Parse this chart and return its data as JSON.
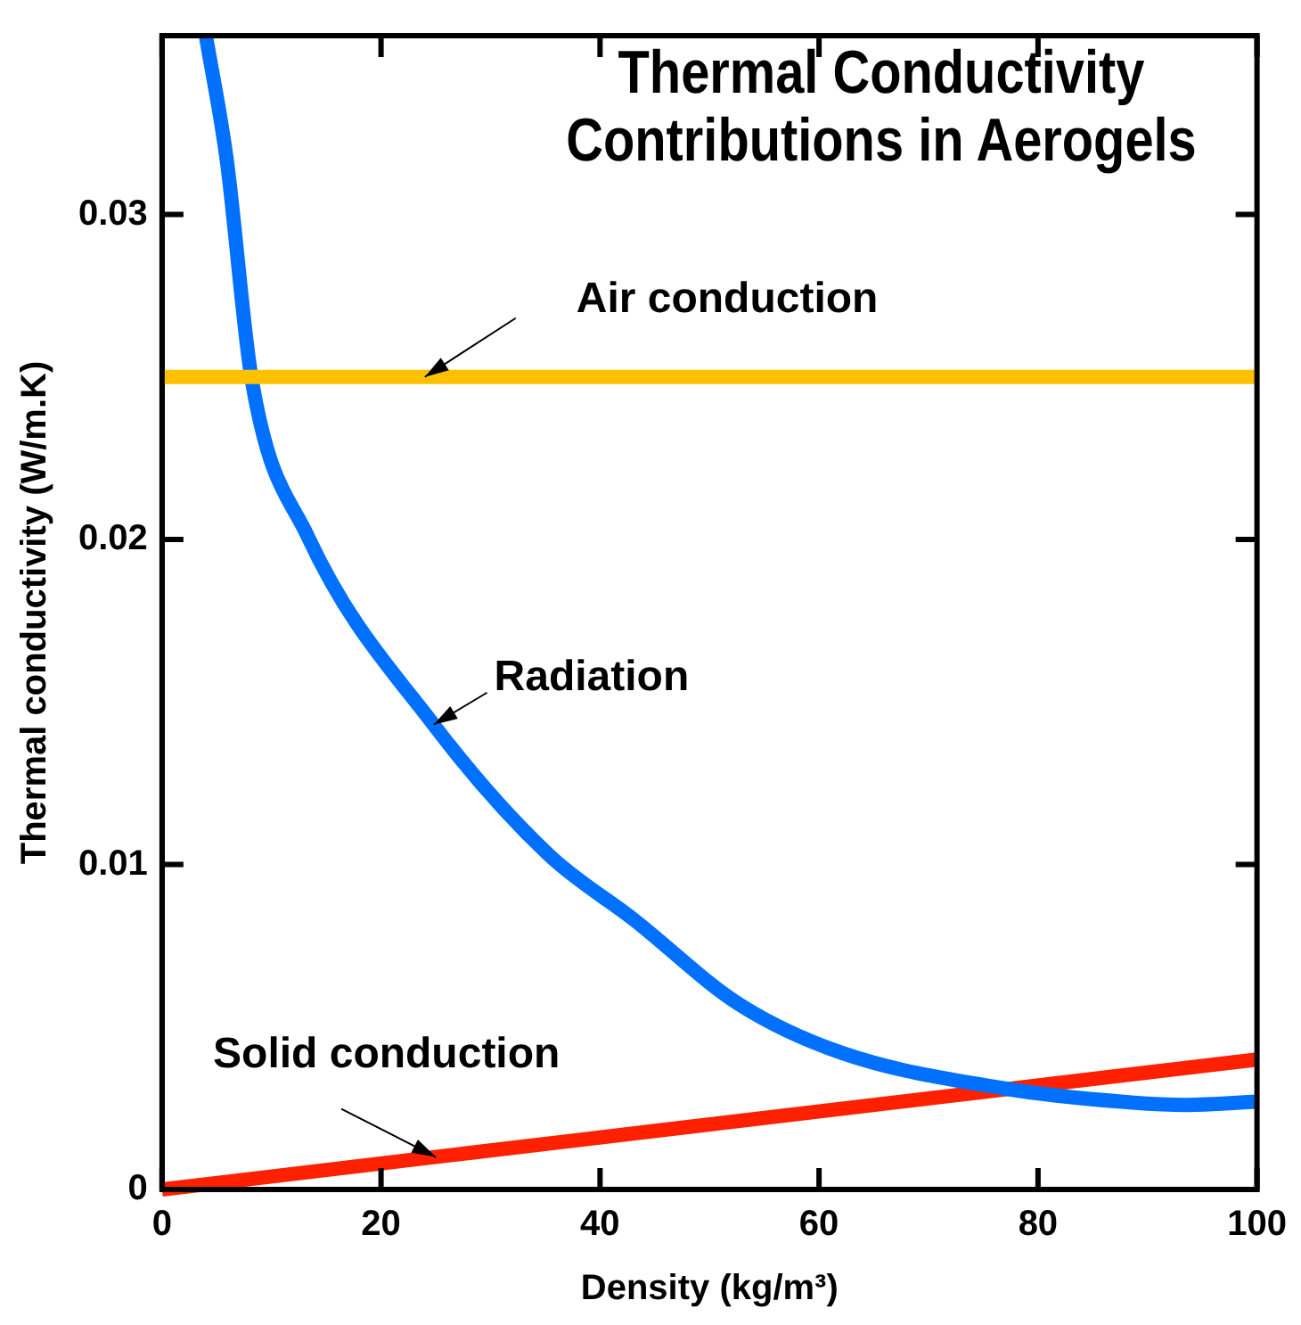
{
  "chart_data": {
    "type": "line",
    "title": "Thermal Conductivity Contributions in Aerogels",
    "xlabel": "Density (kg/m³)",
    "ylabel": "Thermal conductivity (W/m.K)",
    "xlim": [
      0,
      100
    ],
    "xticks": [
      0,
      20,
      40,
      60,
      80,
      100
    ],
    "ylim": [
      0,
      0.0355
    ],
    "yticks": [
      0,
      0.01,
      0.02,
      0.03
    ],
    "grid": false,
    "legend": false,
    "marker": "none",
    "line_style": "solid",
    "series": [
      {
        "name": "Air conduction",
        "color": "#ffc000",
        "x": [
          0,
          100
        ],
        "values": [
          0.025,
          0.025
        ]
      },
      {
        "name": "Radiation",
        "color": "#0070ff",
        "x": [
          4,
          5.9,
          8.2,
          13.3,
          24.8,
          35.3,
          43.1,
          52.7,
          62.1,
          77.1,
          87.6,
          93.5,
          100
        ],
        "values": [
          0.0355,
          0.0317,
          0.0249,
          0.0201,
          0.0143,
          0.0103,
          0.0083,
          0.0057,
          0.0042,
          0.0031,
          0.0027,
          0.0026,
          0.0027
        ]
      },
      {
        "name": "Solid conduction",
        "color": "#ff2000",
        "x": [
          0,
          100
        ],
        "values": [
          0,
          0.004
        ]
      }
    ]
  }
}
